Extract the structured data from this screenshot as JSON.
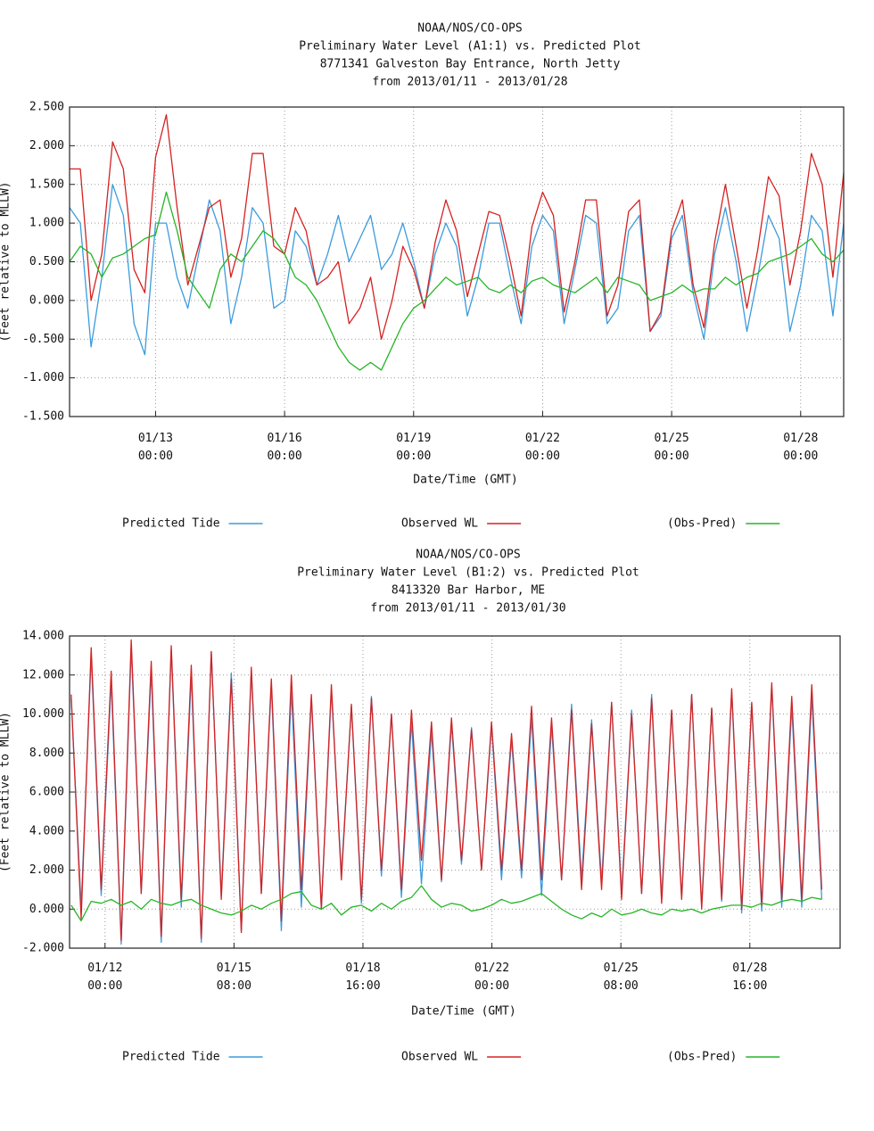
{
  "chart_data": [
    {
      "type": "line",
      "title": "NOAA/NOS/CO-OPS",
      "subtitle": [
        "Preliminary  Water Level (A1:1) vs. Predicted Plot",
        "8771341 Galveston Bay Entrance, North Jetty",
        "from 2013/01/11 - 2013/01/28"
      ],
      "x_label": "Date/Time (GMT)",
      "y_label": "(Feet relative to MLLW)",
      "grid": true,
      "legend": "bottom",
      "xlim": [
        "01/11 00:00",
        "01/29 00:00"
      ],
      "xticks": [
        "01/13 00:00",
        "01/16 00:00",
        "01/19 00:00",
        "01/22 00:00",
        "01/25 00:00",
        "01/28 00:00"
      ],
      "ylim": [
        -1.5,
        2.5
      ],
      "yticks": [
        {
          "value": -1.5,
          "label": "-1.500"
        },
        {
          "value": -1,
          "label": "-1.000"
        },
        {
          "value": -0.5,
          "label": "-0.500"
        },
        {
          "value": 0,
          "label": "0.000"
        },
        {
          "value": 0.5,
          "label": "0.500"
        },
        {
          "value": 1,
          "label": "1.000"
        },
        {
          "value": 1.5,
          "label": "1.500"
        },
        {
          "value": 2,
          "label": "2.000"
        },
        {
          "value": 2.5,
          "label": "2.500"
        }
      ],
      "x": [
        "01/11 00:00",
        "01/11 06:00",
        "01/11 12:00",
        "01/11 18:00",
        "01/12 00:00",
        "01/12 06:00",
        "01/12 12:00",
        "01/12 18:00",
        "01/13 00:00",
        "01/13 06:00",
        "01/13 12:00",
        "01/13 18:00",
        "01/14 00:00",
        "01/14 06:00",
        "01/14 12:00",
        "01/14 18:00",
        "01/15 00:00",
        "01/15 06:00",
        "01/15 12:00",
        "01/15 18:00",
        "01/16 00:00",
        "01/16 06:00",
        "01/16 12:00",
        "01/16 18:00",
        "01/17 00:00",
        "01/17 06:00",
        "01/17 12:00",
        "01/17 18:00",
        "01/18 00:00",
        "01/18 06:00",
        "01/18 12:00",
        "01/18 18:00",
        "01/19 00:00",
        "01/19 06:00",
        "01/19 12:00",
        "01/19 18:00",
        "01/20 00:00",
        "01/20 06:00",
        "01/20 12:00",
        "01/20 18:00",
        "01/21 00:00",
        "01/21 06:00",
        "01/21 12:00",
        "01/21 18:00",
        "01/22 00:00",
        "01/22 06:00",
        "01/22 12:00",
        "01/22 18:00",
        "01/23 00:00",
        "01/23 06:00",
        "01/23 12:00",
        "01/23 18:00",
        "01/24 00:00",
        "01/24 06:00",
        "01/24 12:00",
        "01/24 18:00",
        "01/25 00:00",
        "01/25 06:00",
        "01/25 12:00",
        "01/25 18:00",
        "01/26 00:00",
        "01/26 06:00",
        "01/26 12:00",
        "01/26 18:00",
        "01/27 00:00",
        "01/27 06:00",
        "01/27 12:00",
        "01/27 18:00",
        "01/28 00:00",
        "01/28 06:00",
        "01/28 12:00",
        "01/28 18:00",
        "01/29 00:00"
      ],
      "series": [
        {
          "name": "Predicted Tide",
          "color": "#3b9bdc",
          "values": [
            1.2,
            1.0,
            -0.6,
            0.3,
            1.5,
            1.1,
            -0.3,
            -0.7,
            1.0,
            1.0,
            0.3,
            -0.1,
            0.6,
            1.3,
            0.9,
            -0.3,
            0.3,
            1.2,
            1.0,
            -0.1,
            0.0,
            0.9,
            0.7,
            0.2,
            0.6,
            1.1,
            0.5,
            0.8,
            1.1,
            0.4,
            0.6,
            1.0,
            0.5,
            -0.1,
            0.6,
            1.0,
            0.7,
            -0.2,
            0.3,
            1.0,
            1.0,
            0.3,
            -0.3,
            0.7,
            1.1,
            0.9,
            -0.3,
            0.4,
            1.1,
            1.0,
            -0.3,
            -0.1,
            0.9,
            1.1,
            -0.4,
            -0.2,
            0.8,
            1.1,
            0.1,
            -0.5,
            0.6,
            1.2,
            0.5,
            -0.4,
            0.3,
            1.1,
            0.8,
            -0.4,
            0.2,
            1.1,
            0.9,
            -0.2,
            1.0
          ]
        },
        {
          "name": "Observed WL",
          "color": "#d42222",
          "values": [
            1.7,
            1.7,
            0.0,
            0.6,
            2.05,
            1.7,
            0.4,
            0.1,
            1.85,
            2.4,
            1.2,
            0.2,
            0.7,
            1.2,
            1.3,
            0.3,
            0.8,
            1.9,
            1.9,
            0.7,
            0.6,
            1.2,
            0.9,
            0.2,
            0.3,
            0.5,
            -0.3,
            -0.1,
            0.3,
            -0.5,
            0.0,
            0.7,
            0.4,
            -0.1,
            0.75,
            1.3,
            0.9,
            0.05,
            0.6,
            1.15,
            1.1,
            0.5,
            -0.2,
            0.95,
            1.4,
            1.1,
            -0.15,
            0.5,
            1.3,
            1.3,
            -0.2,
            0.2,
            1.15,
            1.3,
            -0.4,
            -0.15,
            0.9,
            1.3,
            0.2,
            -0.35,
            0.75,
            1.5,
            0.7,
            -0.1,
            0.65,
            1.6,
            1.35,
            0.2,
            0.9,
            1.9,
            1.5,
            0.3,
            1.65
          ]
        },
        {
          "name": "(Obs-Pred)",
          "color": "#26b526",
          "values": [
            0.5,
            0.7,
            0.6,
            0.3,
            0.55,
            0.6,
            0.7,
            0.8,
            0.85,
            1.4,
            0.9,
            0.3,
            0.1,
            -0.1,
            0.4,
            0.6,
            0.5,
            0.7,
            0.9,
            0.8,
            0.6,
            0.3,
            0.2,
            0.0,
            -0.3,
            -0.6,
            -0.8,
            -0.9,
            -0.8,
            -0.9,
            -0.6,
            -0.3,
            -0.1,
            0.0,
            0.15,
            0.3,
            0.2,
            0.25,
            0.3,
            0.15,
            0.1,
            0.2,
            0.1,
            0.25,
            0.3,
            0.2,
            0.15,
            0.1,
            0.2,
            0.3,
            0.1,
            0.3,
            0.25,
            0.2,
            0.0,
            0.05,
            0.1,
            0.2,
            0.1,
            0.15,
            0.15,
            0.3,
            0.2,
            0.3,
            0.35,
            0.5,
            0.55,
            0.6,
            0.7,
            0.8,
            0.6,
            0.5,
            0.65
          ]
        }
      ]
    },
    {
      "type": "line",
      "title": "NOAA/NOS/CO-OPS",
      "subtitle": [
        "Preliminary  Water Level (B1:2) vs. Predicted Plot",
        "8413320 Bar Harbor, ME",
        "from 2013/01/11 - 2013/01/30"
      ],
      "x_label": "Date/Time (GMT)",
      "y_label": "(Feet relative to MLLW)",
      "grid": true,
      "legend": "bottom",
      "xlim": [
        "01/11 02:00",
        "01/31 00:00"
      ],
      "xticks": [
        "01/12 00:00",
        "01/15 08:00",
        "01/18 16:00",
        "01/22 00:00",
        "01/25 08:00",
        "01/28 16:00"
      ],
      "ylim": [
        -2,
        14
      ],
      "yticks": [
        {
          "value": -2,
          "label": "-2.000"
        },
        {
          "value": 0,
          "label": "0.000"
        },
        {
          "value": 2,
          "label": "2.000"
        },
        {
          "value": 4,
          "label": "4.000"
        },
        {
          "value": 6,
          "label": "6.000"
        },
        {
          "value": 8,
          "label": "8.000"
        },
        {
          "value": 10,
          "label": "10.000"
        },
        {
          "value": 12,
          "label": "12.000"
        },
        {
          "value": 14,
          "label": "14.000"
        }
      ],
      "x": [
        "01/11 03:00",
        "01/11 09:12",
        "01/11 15:25",
        "01/11 21:37",
        "01/12 03:50",
        "01/12 10:02",
        "01/12 16:15",
        "01/12 22:27",
        "01/13 04:40",
        "01/13 10:52",
        "01/13 17:05",
        "01/13 23:17",
        "01/14 05:30",
        "01/14 11:42",
        "01/14 17:55",
        "01/15 00:07",
        "01/15 06:20",
        "01/15 12:32",
        "01/15 18:45",
        "01/16 00:57",
        "01/16 07:10",
        "01/16 13:22",
        "01/16 19:35",
        "01/17 01:47",
        "01/17 08:00",
        "01/17 14:12",
        "01/17 20:25",
        "01/18 02:37",
        "01/18 08:50",
        "01/18 15:02",
        "01/18 21:15",
        "01/19 03:27",
        "01/19 09:40",
        "01/19 15:52",
        "01/19 22:05",
        "01/20 04:17",
        "01/20 10:30",
        "01/20 16:42",
        "01/20 22:55",
        "01/21 05:07",
        "01/21 11:20",
        "01/21 17:32",
        "01/21 23:45",
        "01/22 05:57",
        "01/22 12:10",
        "01/22 18:22",
        "01/23 00:35",
        "01/23 06:47",
        "01/23 13:00",
        "01/23 19:12",
        "01/24 01:25",
        "01/24 07:37",
        "01/24 13:50",
        "01/24 20:02",
        "01/25 02:15",
        "01/25 08:27",
        "01/25 14:40",
        "01/25 20:52",
        "01/26 03:05",
        "01/26 09:17",
        "01/26 15:30",
        "01/26 21:42",
        "01/27 03:55",
        "01/27 10:07",
        "01/27 16:20",
        "01/27 22:32",
        "01/28 04:45",
        "01/28 10:57",
        "01/28 17:10",
        "01/28 23:22",
        "01/29 05:35",
        "01/29 11:47",
        "01/29 18:00",
        "01/30 00:12",
        "01/30 06:25",
        "01/30 12:37"
      ],
      "series": [
        {
          "name": "Predicted Tide",
          "color": "#3b9bdc",
          "values": [
            10.8,
            0.1,
            13.0,
            0.7,
            11.7,
            -1.8,
            13.4,
            0.8,
            12.2,
            -1.7,
            13.3,
            0.1,
            12.0,
            -1.7,
            13.2,
            0.7,
            12.1,
            -1.1,
            12.2,
            0.8,
            11.5,
            -1.1,
            11.2,
            0.1,
            10.8,
            0.0,
            11.2,
            1.8,
            10.4,
            0.3,
            10.9,
            1.7,
            10.0,
            0.6,
            9.6,
            1.3,
            9.1,
            1.4,
            9.5,
            2.3,
            9.3,
            2.0,
            9.4,
            1.5,
            8.7,
            1.6,
            9.8,
            0.7,
            9.4,
            1.5,
            10.5,
            1.5,
            9.7,
            1.4,
            10.6,
            0.8,
            10.2,
            0.8,
            11.0,
            0.6,
            10.2,
            0.6,
            11.0,
            0.2,
            10.3,
            0.4,
            11.1,
            -0.2,
            10.5,
            -0.1,
            11.4,
            0.1,
            10.4,
            0.1,
            10.9,
            0.5
          ]
        },
        {
          "name": "Observed WL",
          "color": "#d42222",
          "values": [
            11.0,
            -0.5,
            13.4,
            1.0,
            12.2,
            -1.6,
            13.8,
            0.8,
            12.7,
            -1.4,
            13.5,
            0.5,
            12.5,
            -1.5,
            13.2,
            0.5,
            11.8,
            -1.2,
            12.4,
            0.8,
            11.8,
            -0.6,
            12.0,
            1.0,
            11.0,
            0.0,
            11.5,
            1.5,
            10.5,
            0.5,
            10.8,
            2.0,
            10.0,
            1.0,
            10.2,
            2.5,
            9.6,
            1.5,
            9.8,
            2.5,
            9.2,
            2.0,
            9.6,
            2.0,
            9.0,
            2.0,
            10.4,
            1.5,
            9.8,
            1.5,
            10.2,
            1.0,
            9.5,
            1.0,
            10.6,
            0.5,
            10.0,
            0.8,
            10.8,
            0.3,
            10.2,
            0.5,
            11.0,
            0.0,
            10.3,
            0.5,
            11.3,
            0.0,
            10.6,
            0.2,
            11.6,
            0.5,
            10.9,
            0.5,
            11.5,
            1.0
          ]
        },
        {
          "name": "(Obs-Pred)",
          "color": "#26b526",
          "values": [
            0.2,
            -0.6,
            0.4,
            0.3,
            0.5,
            0.2,
            0.4,
            0.0,
            0.5,
            0.3,
            0.2,
            0.4,
            0.5,
            0.2,
            0.0,
            -0.2,
            -0.3,
            -0.1,
            0.2,
            0.0,
            0.3,
            0.5,
            0.8,
            0.9,
            0.2,
            0.0,
            0.3,
            -0.3,
            0.1,
            0.2,
            -0.1,
            0.3,
            0.0,
            0.4,
            0.6,
            1.2,
            0.5,
            0.1,
            0.3,
            0.2,
            -0.1,
            0.0,
            0.2,
            0.5,
            0.3,
            0.4,
            0.6,
            0.8,
            0.4,
            0.0,
            -0.3,
            -0.5,
            -0.2,
            -0.4,
            0.0,
            -0.3,
            -0.2,
            0.0,
            -0.2,
            -0.3,
            0.0,
            -0.1,
            0.0,
            -0.2,
            0.0,
            0.1,
            0.2,
            0.2,
            0.1,
            0.3,
            0.2,
            0.4,
            0.5,
            0.4,
            0.6,
            0.5
          ]
        }
      ]
    }
  ]
}
